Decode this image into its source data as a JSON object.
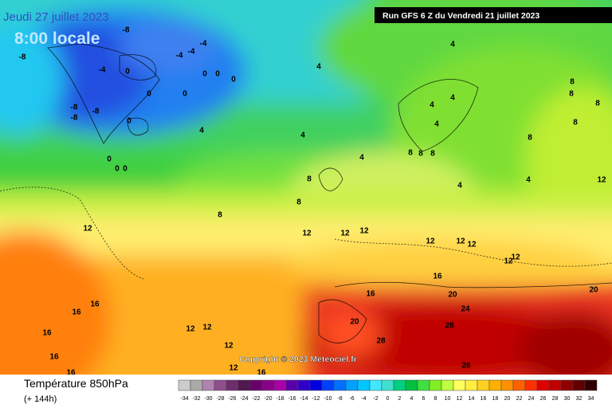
{
  "header": {
    "date": "Jeudi 27 juillet 2023",
    "time": "8:00 locale",
    "run": "Run GFS 6 Z du Vendredi 21 juillet 2023"
  },
  "copyright": "Copyright © 2023 Meteociel.fr",
  "footer": {
    "title": "Température 850hPa",
    "lead": "(+ 144h)"
  },
  "contour_labels": [
    -8,
    -4,
    -4,
    -4,
    -8,
    -4,
    0,
    0,
    0,
    0,
    0,
    0,
    -8,
    -8,
    -8,
    0,
    4,
    4,
    4,
    4,
    4,
    4,
    4,
    4,
    0,
    0,
    0,
    8,
    8,
    8,
    8,
    8,
    8,
    8,
    8,
    8,
    8,
    8,
    4,
    4,
    12,
    12,
    12,
    12,
    12,
    12,
    12,
    12,
    12,
    12,
    16,
    16,
    16,
    16,
    16,
    16,
    16,
    16,
    12,
    12,
    12,
    12,
    20,
    20,
    20,
    24,
    28,
    28,
    28
  ],
  "scale": {
    "ticks": [
      -34,
      -32,
      -30,
      -28,
      -26,
      -24,
      -22,
      -20,
      -18,
      -16,
      -14,
      -12,
      -10,
      -8,
      -6,
      -4,
      -2,
      0,
      2,
      4,
      6,
      8,
      10,
      12,
      14,
      16,
      18,
      20,
      22,
      24,
      26,
      28,
      30,
      32,
      34
    ],
    "colors": [
      "#cccccc",
      "#aaaaaa",
      "#b083b0",
      "#8e4f8e",
      "#6e2e6e",
      "#501850",
      "#6a006a",
      "#8a008a",
      "#aa00aa",
      "#5a00aa",
      "#3000c8",
      "#0000e0",
      "#0040ff",
      "#0070ff",
      "#00a0ff",
      "#00c8ff",
      "#40e8ff",
      "#40e0d0",
      "#00d080",
      "#00c040",
      "#40e040",
      "#80f020",
      "#c0ff40",
      "#ffff60",
      "#ffee40",
      "#ffd020",
      "#ffb000",
      "#ff9000",
      "#ff6000",
      "#ff3000",
      "#e00000",
      "#c00000",
      "#900000",
      "#600000",
      "#300000"
    ]
  }
}
